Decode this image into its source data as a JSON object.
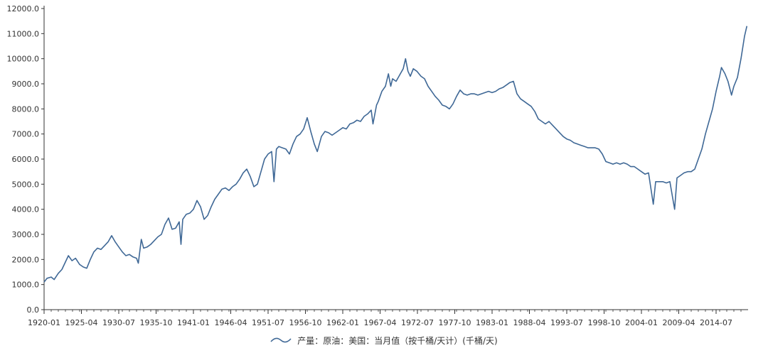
{
  "chart_data": {
    "type": "line",
    "title": "",
    "xlabel": "",
    "ylabel": "",
    "ylim": [
      0,
      12000
    ],
    "y_ticks": [
      "0.0",
      "1000.0",
      "2000.0",
      "3000.0",
      "4000.0",
      "5000.0",
      "6000.0",
      "7000.0",
      "8000.0",
      "9000.0",
      "10000.0",
      "11000.0",
      "12000.0"
    ],
    "x_ticks": [
      "1920-01",
      "1925-04",
      "1930-07",
      "1935-10",
      "1941-01",
      "1946-04",
      "1951-07",
      "1956-10",
      "1962-01",
      "1967-04",
      "1972-07",
      "1977-10",
      "1983-01",
      "1988-04",
      "1993-07",
      "1998-10",
      "2004-01",
      "2009-04",
      "2014-07"
    ],
    "grid": false,
    "legend_placement": "bottom-center",
    "colors": {
      "series": "#3f6896",
      "axis": "#333333"
    },
    "series": [
      {
        "name": "产量：原油：美国：当月值（按千桶/天计）(千桶/天)",
        "points": [
          [
            "1920-01",
            1100
          ],
          [
            "1920-06",
            1250
          ],
          [
            "1921-01",
            1300
          ],
          [
            "1921-06",
            1200
          ],
          [
            "1922-01",
            1450
          ],
          [
            "1922-07",
            1600
          ],
          [
            "1923-01",
            1900
          ],
          [
            "1923-06",
            2150
          ],
          [
            "1923-12",
            1950
          ],
          [
            "1924-06",
            2050
          ],
          [
            "1925-01",
            1800
          ],
          [
            "1925-07",
            1700
          ],
          [
            "1926-01",
            1650
          ],
          [
            "1926-07",
            2000
          ],
          [
            "1927-01",
            2300
          ],
          [
            "1927-07",
            2450
          ],
          [
            "1928-01",
            2400
          ],
          [
            "1928-07",
            2550
          ],
          [
            "1929-01",
            2700
          ],
          [
            "1929-07",
            2950
          ],
          [
            "1930-01",
            2700
          ],
          [
            "1930-07",
            2500
          ],
          [
            "1931-01",
            2300
          ],
          [
            "1931-07",
            2150
          ],
          [
            "1932-01",
            2200
          ],
          [
            "1932-07",
            2100
          ],
          [
            "1933-01",
            2050
          ],
          [
            "1933-04",
            1850
          ],
          [
            "1933-09",
            2800
          ],
          [
            "1934-01",
            2450
          ],
          [
            "1934-07",
            2500
          ],
          [
            "1935-01",
            2600
          ],
          [
            "1935-07",
            2750
          ],
          [
            "1936-01",
            2900
          ],
          [
            "1936-07",
            3000
          ],
          [
            "1937-01",
            3400
          ],
          [
            "1937-07",
            3650
          ],
          [
            "1938-01",
            3200
          ],
          [
            "1938-07",
            3250
          ],
          [
            "1939-01",
            3500
          ],
          [
            "1939-04",
            2600
          ],
          [
            "1939-07",
            3600
          ],
          [
            "1940-01",
            3800
          ],
          [
            "1940-07",
            3850
          ],
          [
            "1941-01",
            4000
          ],
          [
            "1941-07",
            4350
          ],
          [
            "1942-01",
            4100
          ],
          [
            "1942-07",
            3600
          ],
          [
            "1943-01",
            3750
          ],
          [
            "1943-07",
            4100
          ],
          [
            "1944-01",
            4400
          ],
          [
            "1944-07",
            4600
          ],
          [
            "1945-01",
            4800
          ],
          [
            "1945-07",
            4850
          ],
          [
            "1946-01",
            4750
          ],
          [
            "1946-07",
            4900
          ],
          [
            "1947-01",
            5000
          ],
          [
            "1947-07",
            5200
          ],
          [
            "1948-01",
            5450
          ],
          [
            "1948-07",
            5600
          ],
          [
            "1949-01",
            5300
          ],
          [
            "1949-07",
            4900
          ],
          [
            "1950-01",
            5000
          ],
          [
            "1950-07",
            5500
          ],
          [
            "1951-01",
            6000
          ],
          [
            "1951-07",
            6200
          ],
          [
            "1952-01",
            6300
          ],
          [
            "1952-05",
            5100
          ],
          [
            "1952-09",
            6400
          ],
          [
            "1953-01",
            6500
          ],
          [
            "1953-07",
            6450
          ],
          [
            "1954-01",
            6400
          ],
          [
            "1954-07",
            6200
          ],
          [
            "1955-01",
            6600
          ],
          [
            "1955-07",
            6900
          ],
          [
            "1956-01",
            7000
          ],
          [
            "1956-07",
            7200
          ],
          [
            "1957-01",
            7650
          ],
          [
            "1957-07",
            7100
          ],
          [
            "1958-01",
            6600
          ],
          [
            "1958-06",
            6300
          ],
          [
            "1959-01",
            6900
          ],
          [
            "1959-07",
            7100
          ],
          [
            "1960-01",
            7050
          ],
          [
            "1960-07",
            6950
          ],
          [
            "1961-01",
            7050
          ],
          [
            "1961-07",
            7150
          ],
          [
            "1962-01",
            7250
          ],
          [
            "1962-07",
            7200
          ],
          [
            "1963-01",
            7400
          ],
          [
            "1963-07",
            7450
          ],
          [
            "1964-01",
            7550
          ],
          [
            "1964-07",
            7500
          ],
          [
            "1965-01",
            7700
          ],
          [
            "1965-07",
            7800
          ],
          [
            "1966-01",
            7950
          ],
          [
            "1966-04",
            7400
          ],
          [
            "1966-10",
            8150
          ],
          [
            "1967-01",
            8300
          ],
          [
            "1967-07",
            8700
          ],
          [
            "1968-01",
            8900
          ],
          [
            "1968-06",
            9400
          ],
          [
            "1968-10",
            8900
          ],
          [
            "1969-01",
            9200
          ],
          [
            "1969-07",
            9100
          ],
          [
            "1970-01",
            9350
          ],
          [
            "1970-07",
            9600
          ],
          [
            "1970-11",
            10000
          ],
          [
            "1971-03",
            9500
          ],
          [
            "1971-07",
            9300
          ],
          [
            "1971-12",
            9600
          ],
          [
            "1972-06",
            9500
          ],
          [
            "1973-01",
            9300
          ],
          [
            "1973-07",
            9200
          ],
          [
            "1974-01",
            8900
          ],
          [
            "1974-07",
            8700
          ],
          [
            "1975-01",
            8500
          ],
          [
            "1975-07",
            8350
          ],
          [
            "1976-01",
            8150
          ],
          [
            "1976-07",
            8100
          ],
          [
            "1977-01",
            8000
          ],
          [
            "1977-07",
            8200
          ],
          [
            "1978-01",
            8500
          ],
          [
            "1978-07",
            8750
          ],
          [
            "1979-01",
            8600
          ],
          [
            "1979-07",
            8550
          ],
          [
            "1980-01",
            8600
          ],
          [
            "1980-07",
            8600
          ],
          [
            "1981-01",
            8550
          ],
          [
            "1981-07",
            8600
          ],
          [
            "1982-01",
            8650
          ],
          [
            "1982-07",
            8700
          ],
          [
            "1983-01",
            8650
          ],
          [
            "1983-07",
            8700
          ],
          [
            "1984-01",
            8800
          ],
          [
            "1984-07",
            8850
          ],
          [
            "1985-01",
            8950
          ],
          [
            "1985-07",
            9050
          ],
          [
            "1986-01",
            9100
          ],
          [
            "1986-07",
            8600
          ],
          [
            "1987-01",
            8400
          ],
          [
            "1987-07",
            8300
          ],
          [
            "1988-01",
            8200
          ],
          [
            "1988-07",
            8100
          ],
          [
            "1989-01",
            7900
          ],
          [
            "1989-07",
            7600
          ],
          [
            "1990-01",
            7500
          ],
          [
            "1990-07",
            7400
          ],
          [
            "1991-01",
            7500
          ],
          [
            "1991-07",
            7350
          ],
          [
            "1992-01",
            7200
          ],
          [
            "1992-07",
            7050
          ],
          [
            "1993-01",
            6900
          ],
          [
            "1993-07",
            6800
          ],
          [
            "1994-01",
            6750
          ],
          [
            "1994-07",
            6650
          ],
          [
            "1995-01",
            6600
          ],
          [
            "1995-07",
            6550
          ],
          [
            "1996-01",
            6500
          ],
          [
            "1996-07",
            6450
          ],
          [
            "1997-01",
            6450
          ],
          [
            "1997-07",
            6450
          ],
          [
            "1998-01",
            6400
          ],
          [
            "1998-07",
            6200
          ],
          [
            "1999-01",
            5900
          ],
          [
            "1999-07",
            5850
          ],
          [
            "2000-01",
            5800
          ],
          [
            "2000-07",
            5850
          ],
          [
            "2001-01",
            5800
          ],
          [
            "2001-07",
            5850
          ],
          [
            "2002-01",
            5800
          ],
          [
            "2002-07",
            5700
          ],
          [
            "2003-01",
            5700
          ],
          [
            "2003-07",
            5600
          ],
          [
            "2004-01",
            5500
          ],
          [
            "2004-07",
            5400
          ],
          [
            "2005-01",
            5450
          ],
          [
            "2005-09",
            4200
          ],
          [
            "2006-01",
            5100
          ],
          [
            "2006-07",
            5100
          ],
          [
            "2007-01",
            5100
          ],
          [
            "2007-07",
            5050
          ],
          [
            "2008-01",
            5100
          ],
          [
            "2008-09",
            4000
          ],
          [
            "2009-01",
            5250
          ],
          [
            "2009-07",
            5350
          ],
          [
            "2010-01",
            5450
          ],
          [
            "2010-07",
            5500
          ],
          [
            "2011-01",
            5500
          ],
          [
            "2011-07",
            5600
          ],
          [
            "2012-01",
            6000
          ],
          [
            "2012-07",
            6400
          ],
          [
            "2013-01",
            7000
          ],
          [
            "2013-07",
            7500
          ],
          [
            "2014-01",
            8000
          ],
          [
            "2014-07",
            8700
          ],
          [
            "2015-01",
            9300
          ],
          [
            "2015-04",
            9650
          ],
          [
            "2015-10",
            9400
          ],
          [
            "2016-03",
            9100
          ],
          [
            "2016-09",
            8550
          ],
          [
            "2017-01",
            8900
          ],
          [
            "2017-07",
            9250
          ],
          [
            "2018-01",
            10000
          ],
          [
            "2018-07",
            10900
          ],
          [
            "2018-11",
            11300
          ]
        ]
      }
    ]
  },
  "legend": {
    "label": "产量：原油：美国：当月值（按千桶/天计）(千桶/天)",
    "icon": "legend-line-icon"
  }
}
